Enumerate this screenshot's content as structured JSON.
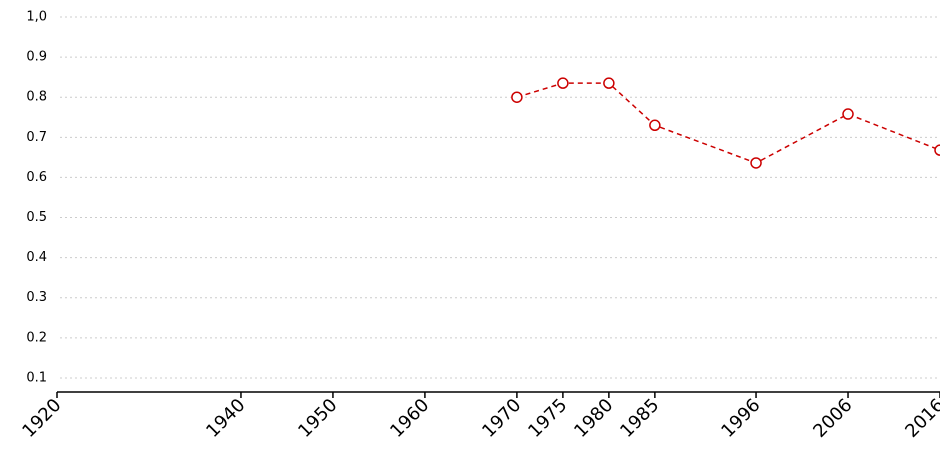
{
  "chart_data": {
    "type": "line",
    "x": [
      1970,
      1975,
      1980,
      1985,
      1996,
      2006,
      2016
    ],
    "series": [
      {
        "color": "#cc0000",
        "values": [
          0.8,
          0.835,
          0.835,
          0.73,
          0.636,
          0.758,
          0.668
        ]
      }
    ],
    "xlim": [
      1920,
      2016
    ],
    "xticks": [
      1920,
      1940,
      1950,
      1960,
      1970,
      1975,
      1980,
      1985,
      1996,
      2006,
      2016
    ],
    "ylim": [
      0.065,
      1.0
    ],
    "yticks": [
      0.1,
      0.2,
      0.3,
      0.4,
      0.5,
      0.6,
      0.7,
      0.8,
      0.9,
      {
        "value": 1.0,
        "label": "1,0"
      }
    ],
    "grid": true
  }
}
